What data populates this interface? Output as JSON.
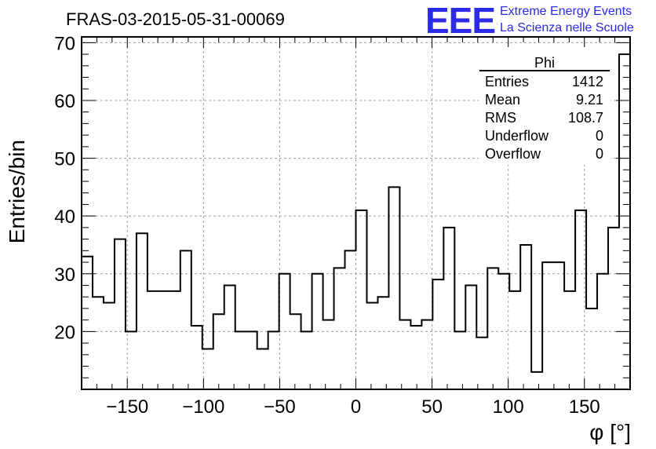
{
  "chart_data": {
    "type": "histogram",
    "title": "FRAS-03-2015-05-31-00069",
    "xlabel": "φ [°]",
    "ylabel": "Entries/bin",
    "xlim": [
      -180,
      180
    ],
    "ylim": [
      10,
      71
    ],
    "bin_width": 7.2,
    "grid": true,
    "x_ticks": [
      -150,
      -100,
      -50,
      0,
      50,
      100,
      150
    ],
    "x_tick_labels": [
      "−150",
      "−100",
      "−50",
      "0",
      "50",
      "100",
      "150"
    ],
    "y_ticks": [
      20,
      30,
      40,
      50,
      60,
      70
    ],
    "y_tick_labels": [
      "20",
      "30",
      "40",
      "50",
      "60",
      "70"
    ],
    "values": [
      33,
      26,
      25,
      36,
      20,
      37,
      27,
      27,
      27,
      34,
      21,
      17,
      23,
      28,
      20,
      20,
      17,
      20,
      30,
      23,
      20,
      30,
      22,
      31,
      34,
      41,
      25,
      26,
      45,
      22,
      21,
      22,
      29,
      38,
      20,
      28,
      19,
      31,
      30,
      27,
      35,
      13,
      32,
      32,
      27,
      41,
      24,
      30,
      38,
      68
    ],
    "stats": {
      "name": "Phi",
      "rows": [
        {
          "label": "Entries",
          "value": "1412"
        },
        {
          "label": "Mean",
          "value": "9.21"
        },
        {
          "label": "RMS",
          "value": "108.7"
        },
        {
          "label": "Underflow",
          "value": "0"
        },
        {
          "label": "Overflow",
          "value": "0"
        }
      ]
    }
  },
  "logo": {
    "text": "EEE",
    "line1": "Extreme Energy Events",
    "line2": "La Scienza nelle Scuole",
    "color": "#2a2ae8"
  }
}
